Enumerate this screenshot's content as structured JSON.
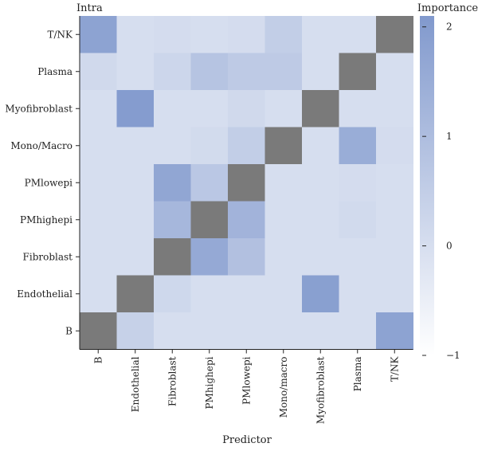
{
  "chart_data": {
    "type": "heatmap",
    "title": "Intra",
    "xlabel": "Predictor",
    "ylabel": "",
    "x_categories": [
      "B",
      "Endothelial",
      "Fibroblast",
      "PMhighepi",
      "PMlowepi",
      "Mono/macro",
      "Myofibroblast",
      "Plasma",
      "T/NK"
    ],
    "y_categories": [
      "T/NK",
      "Plasma",
      "Myofibroblast",
      "Mono/Macro",
      "PMlowepi",
      "PMhighepi",
      "Fibroblast",
      "Endothelial",
      "B"
    ],
    "values": [
      [
        1.8,
        0,
        0.05,
        0,
        0.05,
        0.5,
        0,
        0,
        null
      ],
      [
        0.15,
        0,
        0.25,
        0.8,
        0.6,
        0.6,
        0,
        null,
        0
      ],
      [
        0,
        2.0,
        0,
        0,
        0.15,
        0,
        null,
        0,
        0
      ],
      [
        0,
        0,
        0,
        0.1,
        0.5,
        null,
        0,
        1.5,
        0.05
      ],
      [
        0,
        0,
        1.7,
        0.7,
        null,
        0,
        0,
        0.05,
        0
      ],
      [
        0,
        0,
        1.2,
        null,
        1.3,
        0,
        0,
        0.12,
        0
      ],
      [
        0,
        0,
        null,
        1.6,
        0.9,
        0,
        0,
        0,
        0
      ],
      [
        0,
        null,
        0.2,
        0,
        0,
        0,
        1.9,
        0,
        0
      ],
      [
        null,
        0.4,
        0,
        0,
        0,
        0,
        0,
        0,
        1.8
      ]
    ],
    "colorbar": {
      "label": "Importance",
      "min": -1,
      "max": 2.1,
      "ticks": [
        2,
        1,
        0,
        -1
      ],
      "tick_labels": [
        "2",
        "1",
        "0",
        "−1"
      ],
      "color_low": "#ffffff",
      "color_high": "#8199cd",
      "missing_color": "#7a7a7a"
    },
    "grid": false
  }
}
